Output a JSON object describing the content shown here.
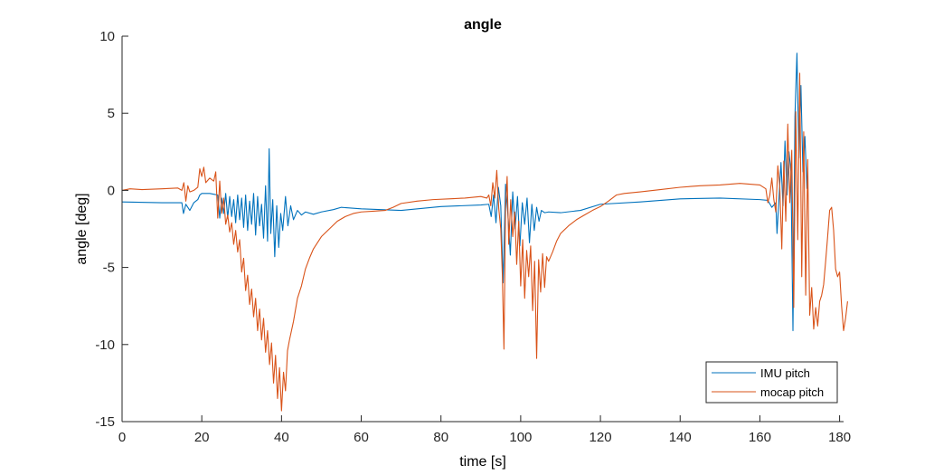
{
  "chart_data": {
    "type": "line",
    "title": "angle",
    "xlabel": "time [s]",
    "ylabel": "angle [deg]",
    "xlim": [
      0,
      181
    ],
    "ylim": [
      -15,
      10
    ],
    "xticks": [
      0,
      20,
      40,
      60,
      80,
      100,
      120,
      140,
      160,
      180
    ],
    "yticks": [
      -15,
      -10,
      -5,
      0,
      5,
      10
    ],
    "grid": false,
    "legend_position": "bottom-right",
    "series": [
      {
        "name": "IMU pitch",
        "color": "#0072BD",
        "points": [
          [
            0,
            -0.75
          ],
          [
            10,
            -0.8
          ],
          [
            15,
            -0.8
          ],
          [
            15.4,
            -1.5
          ],
          [
            16,
            -0.9
          ],
          [
            17,
            -1.3
          ],
          [
            18,
            -0.8
          ],
          [
            19,
            -0.6
          ],
          [
            19.5,
            -0.3
          ],
          [
            20,
            -0.2
          ],
          [
            22,
            -0.2
          ],
          [
            23,
            -0.25
          ],
          [
            24,
            -0.3
          ],
          [
            24.5,
            -1.8
          ],
          [
            25,
            -0.5
          ],
          [
            25.5,
            -1.5
          ],
          [
            26,
            -0.2
          ],
          [
            26.5,
            -1.8
          ],
          [
            27,
            -0.4
          ],
          [
            27.5,
            -1.7
          ],
          [
            28,
            -0.6
          ],
          [
            28.5,
            -2.1
          ],
          [
            29,
            -0.3
          ],
          [
            29.5,
            -1.9
          ],
          [
            30,
            -0.5
          ],
          [
            30.5,
            -2.4
          ],
          [
            31,
            -0.3
          ],
          [
            31.5,
            -2.6
          ],
          [
            32,
            -0.7
          ],
          [
            32.5,
            -2.2
          ],
          [
            33,
            -0.2
          ],
          [
            33.5,
            -2.9
          ],
          [
            34,
            -0.4
          ],
          [
            34.5,
            -2.3
          ],
          [
            35,
            -0.9
          ],
          [
            35.5,
            -3.1
          ],
          [
            36,
            0.3
          ],
          [
            36.5,
            -3.3
          ],
          [
            36.9,
            2.7
          ],
          [
            37.3,
            -2.8
          ],
          [
            37.8,
            -0.6
          ],
          [
            38.3,
            -4.3
          ],
          [
            38.8,
            -1.0
          ],
          [
            39.3,
            -3.7
          ],
          [
            39.8,
            -1.5
          ],
          [
            40.3,
            -2.6
          ],
          [
            41,
            -0.4
          ],
          [
            41.6,
            -2.3
          ],
          [
            42.3,
            -1.0
          ],
          [
            43,
            -1.9
          ],
          [
            44,
            -1.3
          ],
          [
            45,
            -1.6
          ],
          [
            46,
            -1.4
          ],
          [
            48,
            -1.55
          ],
          [
            50,
            -1.4
          ],
          [
            53,
            -1.25
          ],
          [
            55,
            -1.1
          ],
          [
            60,
            -1.2
          ],
          [
            65,
            -1.25
          ],
          [
            70,
            -1.3
          ],
          [
            80,
            -1.05
          ],
          [
            90,
            -0.95
          ],
          [
            92,
            -0.9
          ],
          [
            92.6,
            -1.7
          ],
          [
            93.2,
            -0.3
          ],
          [
            93.8,
            -2.1
          ],
          [
            94.4,
            0.2
          ],
          [
            95.0,
            -1.0
          ],
          [
            95.6,
            -6.0
          ],
          [
            96.2,
            0.4
          ],
          [
            96.8,
            -1.6
          ],
          [
            97.4,
            -4.2
          ],
          [
            98.0,
            -0.1
          ],
          [
            98.6,
            -2.5
          ],
          [
            99.2,
            -0.4
          ],
          [
            99.8,
            -3.6
          ],
          [
            100.4,
            -0.8
          ],
          [
            101.0,
            -2.2
          ],
          [
            101.6,
            -0.5
          ],
          [
            102.2,
            -3.4
          ],
          [
            102.8,
            -0.9
          ],
          [
            103.4,
            -2.6
          ],
          [
            104.0,
            -1.1
          ],
          [
            104.6,
            -2.0
          ],
          [
            105.2,
            -1.3
          ],
          [
            106,
            -1.45
          ],
          [
            107,
            -1.4
          ],
          [
            110,
            -1.45
          ],
          [
            115,
            -1.3
          ],
          [
            120,
            -0.9
          ],
          [
            130,
            -0.75
          ],
          [
            140,
            -0.55
          ],
          [
            150,
            -0.5
          ],
          [
            160,
            -0.6
          ],
          [
            162,
            -0.65
          ],
          [
            163,
            -1.1
          ],
          [
            164,
            -0.8
          ],
          [
            164.3,
            -2.8
          ],
          [
            164.8,
            -0.5
          ],
          [
            165.3,
            1.8
          ],
          [
            165.8,
            -1.0
          ],
          [
            166.3,
            3.2
          ],
          [
            166.8,
            -0.3
          ],
          [
            167.3,
            2.5
          ],
          [
            167.8,
            1.2
          ],
          [
            168.3,
            -9.1
          ],
          [
            168.8,
            4.8
          ],
          [
            169.3,
            8.9
          ],
          [
            169.8,
            2.1
          ],
          [
            170.3,
            6.8
          ],
          [
            170.8,
            1.2
          ],
          [
            171.3,
            3.5
          ],
          [
            171.8,
            0.1
          ]
        ]
      },
      {
        "name": "mocap pitch",
        "color": "#D95319",
        "points": [
          [
            0,
            0.0
          ],
          [
            2,
            0.1
          ],
          [
            5,
            0.05
          ],
          [
            10,
            0.1
          ],
          [
            14,
            0.15
          ],
          [
            15,
            0.0
          ],
          [
            15.5,
            0.5
          ],
          [
            16,
            -0.7
          ],
          [
            16.5,
            0.3
          ],
          [
            17,
            -0.1
          ],
          [
            18,
            0.0
          ],
          [
            19,
            0.2
          ],
          [
            19.5,
            1.4
          ],
          [
            20,
            0.9
          ],
          [
            20.5,
            1.5
          ],
          [
            21,
            0.5
          ],
          [
            22,
            0.8
          ],
          [
            23,
            0.6
          ],
          [
            23.5,
            1.2
          ],
          [
            24,
            -1.8
          ],
          [
            24.5,
            0.6
          ],
          [
            25,
            -1.5
          ],
          [
            25.5,
            -0.5
          ],
          [
            26,
            -2.2
          ],
          [
            26.5,
            -1.6
          ],
          [
            27,
            -2.7
          ],
          [
            27.5,
            -2.1
          ],
          [
            28,
            -3.5
          ],
          [
            28.5,
            -2.6
          ],
          [
            29,
            -4.0
          ],
          [
            29.5,
            -3.2
          ],
          [
            30,
            -5.3
          ],
          [
            30.5,
            -4.4
          ],
          [
            31,
            -6.5
          ],
          [
            31.5,
            -5.5
          ],
          [
            32,
            -7.4
          ],
          [
            32.5,
            -6.4
          ],
          [
            33,
            -8.2
          ],
          [
            33.5,
            -7.0
          ],
          [
            34,
            -9.1
          ],
          [
            34.5,
            -7.7
          ],
          [
            35,
            -9.7
          ],
          [
            35.5,
            -8.3
          ],
          [
            36,
            -10.5
          ],
          [
            36.5,
            -9.1
          ],
          [
            37,
            -11.3
          ],
          [
            37.5,
            -9.9
          ],
          [
            38,
            -12.5
          ],
          [
            38.5,
            -10.7
          ],
          [
            39,
            -13.5
          ],
          [
            39.5,
            -11.5
          ],
          [
            40,
            -14.3
          ],
          [
            40.5,
            -11.8
          ],
          [
            41,
            -13.0
          ],
          [
            41.5,
            -10.4
          ],
          [
            42,
            -9.7
          ],
          [
            43,
            -8.5
          ],
          [
            44,
            -7.0
          ],
          [
            45,
            -6.2
          ],
          [
            46,
            -5.1
          ],
          [
            47,
            -4.4
          ],
          [
            48,
            -3.8
          ],
          [
            50,
            -3.0
          ],
          [
            52,
            -2.5
          ],
          [
            54,
            -2.0
          ],
          [
            56,
            -1.7
          ],
          [
            58,
            -1.5
          ],
          [
            60,
            -1.4
          ],
          [
            63,
            -1.35
          ],
          [
            66,
            -1.3
          ],
          [
            68,
            -1.1
          ],
          [
            70,
            -0.85
          ],
          [
            74,
            -0.7
          ],
          [
            78,
            -0.6
          ],
          [
            82,
            -0.55
          ],
          [
            86,
            -0.5
          ],
          [
            90,
            -0.4
          ],
          [
            91.5,
            -0.5
          ],
          [
            92,
            -0.3
          ],
          [
            92.5,
            -1.0
          ],
          [
            93,
            0.5
          ],
          [
            93.5,
            -0.5
          ],
          [
            94,
            1.3
          ],
          [
            94.5,
            -1.2
          ],
          [
            95,
            -2.5
          ],
          [
            95.4,
            -5.5
          ],
          [
            95.8,
            -10.3
          ],
          [
            96.2,
            -1.2
          ],
          [
            96.6,
            0.9
          ],
          [
            97,
            -3.5
          ],
          [
            97.5,
            -0.6
          ],
          [
            98,
            -3.0
          ],
          [
            98.5,
            -1.4
          ],
          [
            99,
            -4.8
          ],
          [
            99.5,
            -2.0
          ],
          [
            100,
            -6.2
          ],
          [
            100.5,
            -3.2
          ],
          [
            101,
            -7.0
          ],
          [
            101.5,
            -3.9
          ],
          [
            102,
            -5.6
          ],
          [
            102.5,
            -3.6
          ],
          [
            103,
            -7.8
          ],
          [
            103.5,
            -4.6
          ],
          [
            104,
            -10.9
          ],
          [
            104.5,
            -4.5
          ],
          [
            105,
            -6.6
          ],
          [
            105.5,
            -4.1
          ],
          [
            106,
            -6.3
          ],
          [
            106.5,
            -4.3
          ],
          [
            107,
            -4.6
          ],
          [
            108,
            -4.0
          ],
          [
            109,
            -3.3
          ],
          [
            110,
            -2.8
          ],
          [
            112,
            -2.3
          ],
          [
            114,
            -1.9
          ],
          [
            116,
            -1.6
          ],
          [
            118,
            -1.3
          ],
          [
            120,
            -1.05
          ],
          [
            122,
            -0.7
          ],
          [
            124,
            -0.3
          ],
          [
            126,
            -0.2
          ],
          [
            130,
            -0.1
          ],
          [
            135,
            0.05
          ],
          [
            140,
            0.2
          ],
          [
            145,
            0.3
          ],
          [
            150,
            0.35
          ],
          [
            155,
            0.45
          ],
          [
            160,
            0.35
          ],
          [
            161.5,
            0.1
          ],
          [
            162,
            -0.8
          ],
          [
            162.5,
            -0.3
          ],
          [
            163,
            0.8
          ],
          [
            163.5,
            -0.6
          ],
          [
            164,
            -1.4
          ],
          [
            164.5,
            1.6
          ],
          [
            165,
            0.2
          ],
          [
            165.5,
            -3.8
          ],
          [
            166,
            1.9
          ],
          [
            166.5,
            -2.0
          ],
          [
            167,
            4.3
          ],
          [
            167.5,
            -0.8
          ],
          [
            168,
            2.6
          ],
          [
            168.5,
            -7.6
          ],
          [
            169,
            5.1
          ],
          [
            169.5,
            -3.2
          ],
          [
            170,
            7.6
          ],
          [
            170.5,
            -5.6
          ],
          [
            171,
            3.8
          ],
          [
            171.5,
            -6.8
          ],
          [
            172,
            2.0
          ],
          [
            172.5,
            -8.1
          ],
          [
            173,
            -6.3
          ],
          [
            173.5,
            -9.0
          ],
          [
            174,
            -7.6
          ],
          [
            174.5,
            -8.8
          ],
          [
            175,
            -7.2
          ],
          [
            175.5,
            -6.8
          ],
          [
            176,
            -6.1
          ],
          [
            176.5,
            -4.6
          ],
          [
            177,
            -3.0
          ],
          [
            177.5,
            -1.3
          ],
          [
            178,
            -1.1
          ],
          [
            178.5,
            -2.6
          ],
          [
            179,
            -5.1
          ],
          [
            179.5,
            -5.6
          ],
          [
            180,
            -5.3
          ],
          [
            180.5,
            -7.5
          ],
          [
            181,
            -9.1
          ],
          [
            181.5,
            -8.3
          ],
          [
            182,
            -7.2
          ]
        ]
      }
    ]
  }
}
